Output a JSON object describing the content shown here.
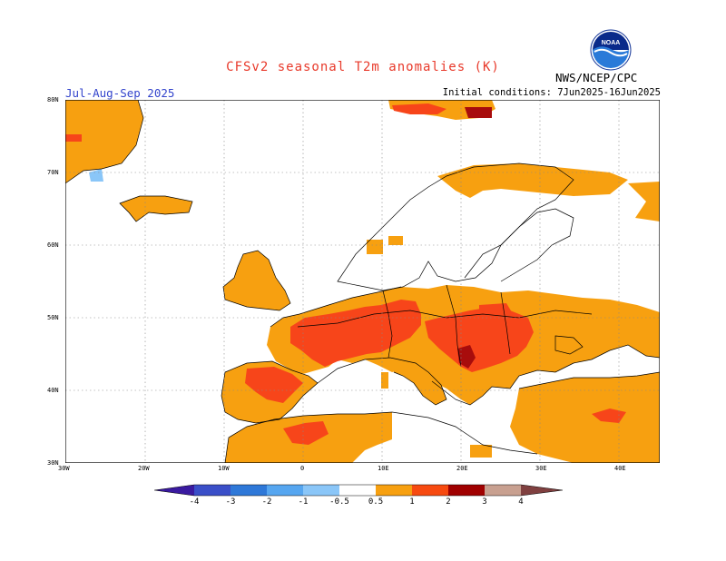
{
  "title": "CFSv2 seasonal T2m anomalies (K)",
  "period": "Jul-Aug-Sep 2025",
  "initial_conditions": "Initial conditions: 7Jun2025-16Jun2025",
  "organization": "NWS/NCEP/CPC",
  "logo_text": "NOAA",
  "lat_labels": [
    "80N",
    "70N",
    "60N",
    "50N",
    "40N",
    "30N"
  ],
  "lon_labels": [
    "30W",
    "20W",
    "10W",
    "0",
    "10E",
    "20E",
    "30E",
    "40E"
  ],
  "colorbar": {
    "labels": [
      "-4",
      "-3",
      "-2",
      "-1",
      "-0.5",
      "0.5",
      "1",
      "2",
      "3",
      "4"
    ],
    "colors": [
      "#3a1aa0",
      "#3a4fc8",
      "#2e78d8",
      "#56a6f0",
      "#8ac6f8",
      "#ffffff",
      "#f7a010",
      "#f74a10",
      "#a00000",
      "#c8a090",
      "#804040"
    ]
  },
  "map_colors": {
    "land_border": "#000000",
    "ocean": "#ffffff",
    "grid": "#888888",
    "anom_05_1": "#f7a010",
    "anom_1_2": "#f7451a",
    "anom_2_3": "#a80c0c",
    "anom_neg": "#8ac6f8"
  }
}
